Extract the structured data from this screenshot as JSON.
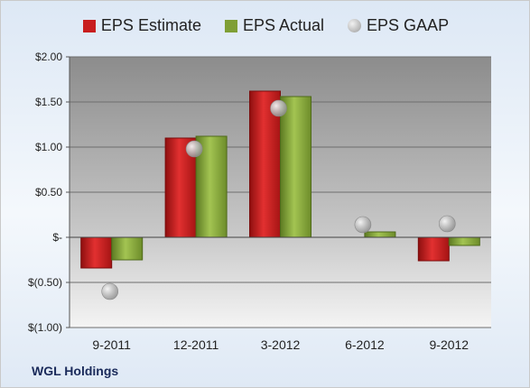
{
  "chart_data": {
    "type": "bar",
    "categories": [
      "9-2011",
      "12-2011",
      "3-2012",
      "6-2012",
      "9-2012"
    ],
    "series": [
      {
        "name": "EPS Estimate",
        "values": [
          -0.34,
          1.1,
          1.62,
          0.0,
          -0.26
        ]
      },
      {
        "name": "EPS Actual",
        "values": [
          -0.25,
          1.12,
          1.56,
          0.06,
          -0.09
        ]
      },
      {
        "name": "EPS GAAP",
        "values": [
          -0.6,
          0.98,
          1.43,
          0.14,
          0.15
        ]
      }
    ],
    "ylim": [
      -1.0,
      2.0
    ],
    "yticks": [
      {
        "value": 2.0,
        "label": "$2.00"
      },
      {
        "value": 1.5,
        "label": "$1.50"
      },
      {
        "value": 1.0,
        "label": "$1.00"
      },
      {
        "value": 0.5,
        "label": "$0.50"
      },
      {
        "value": 0.0,
        "label": "$-"
      },
      {
        "value": -0.5,
        "label": "$(0.50)"
      },
      {
        "value": -1.0,
        "label": "$(1.00)"
      }
    ],
    "grid": true,
    "legend_position": "top"
  },
  "legend": {
    "estimate": "EPS Estimate",
    "actual": "EPS Actual",
    "gaap": "EPS GAAP"
  },
  "company": "WGL Holdings",
  "colors": {
    "estimate": "#c81e1e",
    "actual": "#7f9f35",
    "gaap": "#aaaaaa"
  }
}
